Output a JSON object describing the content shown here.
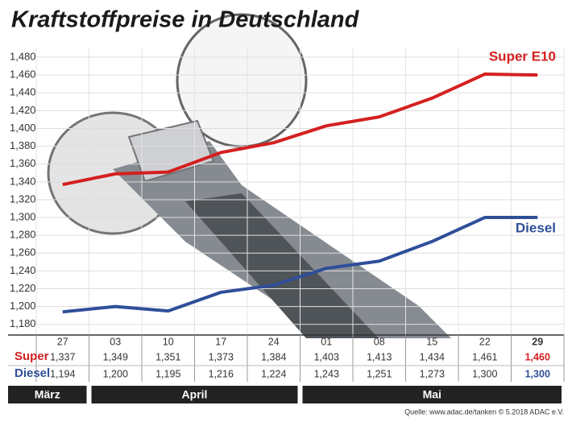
{
  "chart_data": {
    "type": "line",
    "title": "Kraftstoffpreise in Deutschland",
    "categories": [
      "27",
      "03",
      "10",
      "17",
      "24",
      "01",
      "08",
      "15",
      "22",
      "29"
    ],
    "series": [
      {
        "name": "Super E10",
        "row_label": "Super",
        "color": "#d42020",
        "values": [
          1.337,
          1.349,
          1.351,
          1.373,
          1.384,
          1.403,
          1.413,
          1.434,
          1.461,
          1.46
        ],
        "value_labels": [
          "1,337",
          "1,349",
          "1,351",
          "1,373",
          "1,384",
          "1,403",
          "1,413",
          "1,434",
          "1,461",
          "1,460"
        ]
      },
      {
        "name": "Diesel",
        "row_label": "Diesel",
        "color": "#2f4f99",
        "values": [
          1.194,
          1.2,
          1.195,
          1.216,
          1.224,
          1.243,
          1.251,
          1.273,
          1.3,
          1.3
        ],
        "value_labels": [
          "1,194",
          "1,200",
          "1,195",
          "1,216",
          "1,224",
          "1,243",
          "1,251",
          "1,273",
          "1,300",
          "1,300"
        ]
      }
    ],
    "ylim": [
      1.168,
      1.49
    ],
    "yticks": [
      {
        "value": 1.18,
        "label": "1,180"
      },
      {
        "value": 1.2,
        "label": "1,200"
      },
      {
        "value": 1.22,
        "label": "1,220"
      },
      {
        "value": 1.24,
        "label": "1,240"
      },
      {
        "value": 1.26,
        "label": "1,260"
      },
      {
        "value": 1.28,
        "label": "1,280"
      },
      {
        "value": 1.3,
        "label": "1,300"
      },
      {
        "value": 1.32,
        "label": "1,320"
      },
      {
        "value": 1.34,
        "label": "1,340"
      },
      {
        "value": 1.36,
        "label": "1,360"
      },
      {
        "value": 1.38,
        "label": "1,380"
      },
      {
        "value": 1.4,
        "label": "1,400"
      },
      {
        "value": 1.42,
        "label": "1,420"
      },
      {
        "value": 1.44,
        "label": "1,440"
      },
      {
        "value": 1.46,
        "label": "1,460"
      },
      {
        "value": 1.48,
        "label": "1,480"
      }
    ],
    "grid": true,
    "months": [
      "März",
      "April",
      "Mai"
    ],
    "source": "Quelle: www.adac.de/tanken  © 5.2018  ADAC e.V."
  }
}
